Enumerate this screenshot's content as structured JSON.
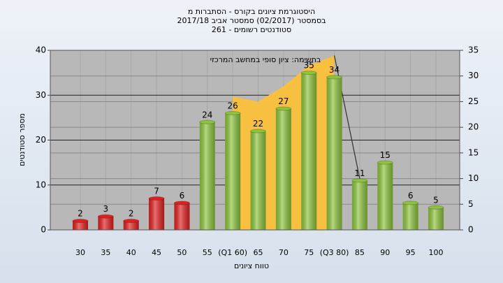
{
  "chart_data": {
    "type": "bar",
    "title": [
      "היסטוגרמת ציונים בקורס - הסתברות מ",
      "בסמסטר  (02/2017)  סמסטר אביב 2017/18",
      "סטודנטים רשומים - 261"
    ],
    "annotation": "בחשימה: ציון סופי במחשב המרכזי",
    "x_label": "טווח ציונים",
    "y_label": "מספר סטודנטים",
    "categories": [
      "30",
      "35",
      "40",
      "45",
      "50",
      "55",
      "(Q1 60)",
      "65",
      "70",
      "75",
      "(Q3 80)",
      "85",
      "90",
      "95",
      "100"
    ],
    "series": [
      {
        "type": "bar",
        "values": [
          2,
          3,
          2,
          7,
          6,
          24,
          26,
          22,
          27,
          35,
          34,
          11,
          15,
          6,
          5
        ],
        "colors": [
          "#e02020",
          "#e02020",
          "#e02020",
          "#e02020",
          "#e02020",
          "#8cc43c",
          "#8cc43c",
          "#8cc43c",
          "#8cc43c",
          "#8cc43c",
          "#8cc43c",
          "#8cc43c",
          "#8cc43c",
          "#8cc43c",
          "#8cc43c"
        ]
      },
      {
        "type": "area",
        "axis": "y2",
        "color": "#f8c040",
        "values": [
          null,
          null,
          null,
          null,
          null,
          null,
          26,
          25,
          28,
          32,
          34,
          null,
          null,
          null,
          null
        ]
      },
      {
        "type": "line",
        "axis": "y2",
        "color": "#303030",
        "values": [
          null,
          null,
          null,
          null,
          null,
          null,
          null,
          null,
          null,
          null,
          34,
          10,
          null,
          null,
          null
        ]
      }
    ],
    "ylim": [
      0,
      40
    ],
    "yticks": [
      0,
      10,
      20,
      30,
      40
    ],
    "y2lim": [
      0,
      35
    ],
    "y2ticks": [
      0,
      5,
      10,
      15,
      20,
      25,
      30,
      35
    ],
    "grid": true
  }
}
